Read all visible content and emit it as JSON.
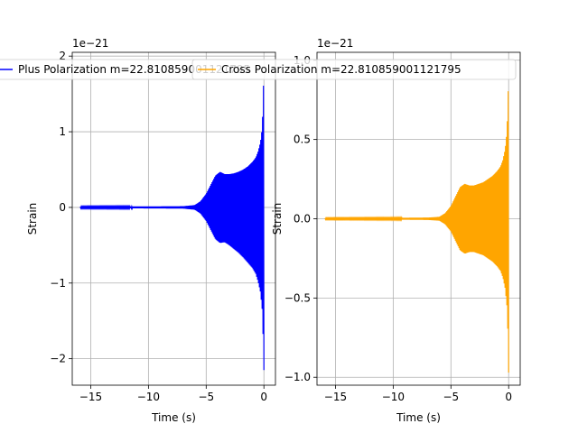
{
  "chart_data": [
    {
      "type": "line",
      "title": "",
      "xlabel": "Time (s)",
      "ylabel": "Strain",
      "xlim": [
        -16.6,
        1.0
      ],
      "ylim": [
        -2.35,
        2.05
      ],
      "x_ticks": [
        -15,
        -10,
        -5,
        0
      ],
      "x_tick_labels": [
        "−15",
        "−10",
        "−5",
        "0"
      ],
      "y_ticks": [
        -2,
        -1,
        0,
        1,
        2
      ],
      "y_tick_labels": [
        "−2",
        "−1",
        "0",
        "1",
        "2"
      ],
      "offset_text": "1e−21",
      "y_scale": 1e-21,
      "grid": true,
      "legend_position": "upper-left",
      "series": [
        {
          "name": "Plus Polarization m=22.810859001121795",
          "color": "#0000ff",
          "envelope": {
            "x": [
              -15.9,
              -10,
              -7,
              -6,
              -5.5,
              -5,
              -4.6,
              -4.2,
              -3.8,
              -3.4,
              -3.0,
              -2.6,
              -2.2,
              -1.8,
              -1.4,
              -1.0,
              -0.7,
              -0.5,
              -0.3,
              -0.15,
              -0.05,
              0.0
            ],
            "upper": [
              0.01,
              0.012,
              0.015,
              0.03,
              0.08,
              0.18,
              0.3,
              0.42,
              0.47,
              0.44,
              0.44,
              0.45,
              0.47,
              0.5,
              0.54,
              0.6,
              0.66,
              0.74,
              0.86,
              1.05,
              1.5,
              2.0
            ],
            "lower": [
              -0.01,
              -0.012,
              -0.015,
              -0.03,
              -0.08,
              -0.18,
              -0.3,
              -0.42,
              -0.47,
              -0.46,
              -0.5,
              -0.55,
              -0.6,
              -0.66,
              -0.73,
              -0.8,
              -0.88,
              -0.98,
              -1.12,
              -1.35,
              -1.8,
              -2.15
            ]
          }
        }
      ]
    },
    {
      "type": "line",
      "title": "",
      "xlabel": "Time (s)",
      "ylabel": "Strain",
      "xlim": [
        -16.6,
        1.0
      ],
      "ylim": [
        -1.05,
        1.05
      ],
      "x_ticks": [
        -15,
        -10,
        -5,
        0
      ],
      "x_tick_labels": [
        "−15",
        "−10",
        "−5",
        "0"
      ],
      "y_ticks": [
        -1.0,
        -0.5,
        0.0,
        0.5,
        1.0
      ],
      "y_tick_labels": [
        "−1.0",
        "−0.5",
        "0.0",
        "0.5",
        "1.0"
      ],
      "offset_text": "1e−21",
      "y_scale": 1e-21,
      "grid": true,
      "legend_position": "upper-left",
      "series": [
        {
          "name": "Cross Polarization m=22.810859001121795",
          "color": "#ffa500",
          "envelope": {
            "x": [
              -15.9,
              -10,
              -7,
              -6,
              -5.5,
              -5,
              -4.6,
              -4.2,
              -3.8,
              -3.4,
              -3.0,
              -2.6,
              -2.2,
              -1.8,
              -1.4,
              -1.0,
              -0.7,
              -0.5,
              -0.3,
              -0.15,
              -0.05,
              0.0
            ],
            "upper": [
              0.004,
              0.005,
              0.007,
              0.012,
              0.035,
              0.08,
              0.14,
              0.2,
              0.22,
              0.21,
              0.21,
              0.22,
              0.23,
              0.25,
              0.27,
              0.3,
              0.33,
              0.37,
              0.44,
              0.55,
              0.75,
              1.0
            ],
            "lower": [
              -0.004,
              -0.005,
              -0.007,
              -0.012,
              -0.035,
              -0.08,
              -0.14,
              -0.2,
              -0.22,
              -0.21,
              -0.21,
              -0.22,
              -0.23,
              -0.25,
              -0.27,
              -0.3,
              -0.33,
              -0.37,
              -0.44,
              -0.55,
              -0.75,
              -0.97
            ]
          }
        }
      ]
    }
  ]
}
